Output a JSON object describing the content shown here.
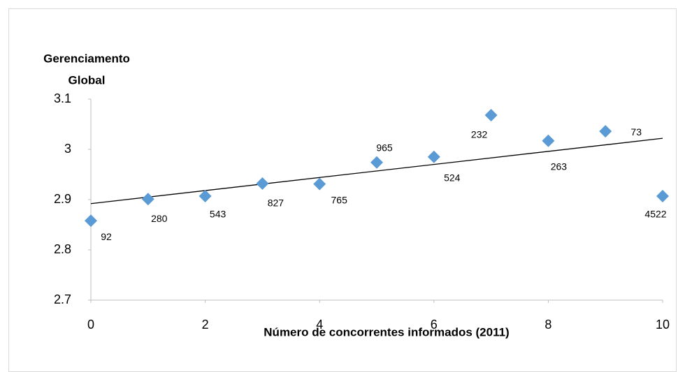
{
  "chart_data": {
    "type": "scatter",
    "ylabel": [
      "Gerenciamento",
      "Global"
    ],
    "xlabel": "Número de concorrentes informados (2011)",
    "x": [
      0,
      1,
      2,
      3,
      4,
      5,
      6,
      7,
      8,
      9,
      10
    ],
    "values": [
      2.858,
      2.901,
      2.907,
      2.932,
      2.931,
      2.974,
      2.985,
      3.068,
      3.017,
      3.036,
      2.907
    ],
    "point_labels": [
      92,
      280,
      543,
      827,
      765,
      965,
      524,
      232,
      263,
      73,
      4522
    ],
    "color": "#5b9bd5",
    "trendline": {
      "x": [
        0,
        10
      ],
      "y": [
        2.892,
        3.022
      ],
      "color": "#000000"
    },
    "xlim": [
      0,
      10
    ],
    "xticks": [
      0,
      2,
      4,
      6,
      8,
      10
    ],
    "ylim": [
      2.7,
      3.1
    ],
    "yticks": [
      2.7,
      2.8,
      2.9,
      3,
      3.1
    ]
  }
}
